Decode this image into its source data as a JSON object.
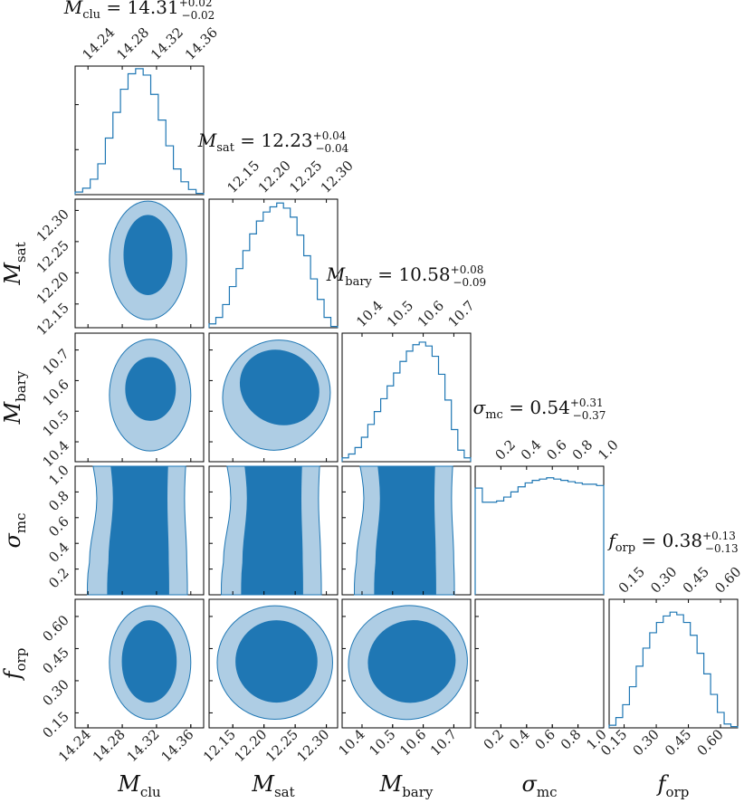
{
  "chart_data": {
    "type": "corner",
    "parameters": [
      {
        "key": "mclu",
        "symbol": "M",
        "sub": "clu",
        "median": "14.31",
        "plus": "+0.02",
        "minus": "−0.02",
        "range": [
          14.225,
          14.375
        ],
        "ticks": [
          14.24,
          14.28,
          14.32,
          14.36
        ],
        "tick_labels": [
          "14.24",
          "14.28",
          "14.32",
          "14.36"
        ],
        "hist": [
          0.02,
          0.05,
          0.12,
          0.24,
          0.44,
          0.64,
          0.82,
          0.94,
          0.98,
          0.93,
          0.78,
          0.58,
          0.38,
          0.2,
          0.1,
          0.04,
          0.01
        ]
      },
      {
        "key": "msat",
        "symbol": "M",
        "sub": "sat",
        "median": "12.23",
        "plus": "+0.04",
        "minus": "−0.04",
        "range": [
          12.112,
          12.318
        ],
        "ticks": [
          12.15,
          12.2,
          12.25,
          12.3
        ],
        "tick_labels": [
          "12.15",
          "12.20",
          "12.25",
          "12.30"
        ],
        "hist": [
          0.03,
          0.08,
          0.18,
          0.32,
          0.46,
          0.6,
          0.73,
          0.83,
          0.9,
          0.94,
          0.97,
          0.93,
          0.86,
          0.72,
          0.56,
          0.38,
          0.22,
          0.08,
          0.01
        ]
      },
      {
        "key": "mbary",
        "symbol": "M",
        "sub": "bary",
        "median": "10.58",
        "plus": "+0.08",
        "minus": "−0.09",
        "range": [
          10.335,
          10.755
        ],
        "ticks": [
          10.4,
          10.5,
          10.6,
          10.7
        ],
        "tick_labels": [
          "10.4",
          "10.5",
          "10.6",
          "10.7"
        ],
        "hist": [
          0.03,
          0.06,
          0.11,
          0.19,
          0.29,
          0.39,
          0.49,
          0.59,
          0.69,
          0.78,
          0.86,
          0.91,
          0.93,
          0.9,
          0.82,
          0.68,
          0.48,
          0.25,
          0.09,
          0.03
        ]
      },
      {
        "key": "sigmc",
        "symbol": "σ",
        "sub": "mc",
        "median": "0.54",
        "plus": "+0.31",
        "minus": "−0.37",
        "range": [
          0.0,
          1.0
        ],
        "ticks": [
          0.2,
          0.4,
          0.6,
          0.8,
          1.0
        ],
        "tick_labels": [
          "0.2",
          "0.4",
          "0.6",
          "0.8",
          "1.0"
        ],
        "hist": [
          0.83,
          0.72,
          0.72,
          0.73,
          0.76,
          0.8,
          0.84,
          0.87,
          0.89,
          0.9,
          0.91,
          0.9,
          0.89,
          0.88,
          0.87,
          0.86,
          0.86,
          0.85
        ]
      },
      {
        "key": "forp",
        "symbol": "f",
        "sub": "orp",
        "median": "0.38",
        "plus": "+0.13",
        "minus": "−0.13",
        "range": [
          0.08,
          0.68
        ],
        "ticks": [
          0.15,
          0.3,
          0.45,
          0.6
        ],
        "tick_labels": [
          "0.15",
          "0.30",
          "0.45",
          "0.60"
        ],
        "hist": [
          0.02,
          0.08,
          0.18,
          0.32,
          0.48,
          0.62,
          0.74,
          0.82,
          0.87,
          0.9,
          0.88,
          0.82,
          0.72,
          0.58,
          0.42,
          0.26,
          0.12,
          0.03,
          0.01
        ]
      }
    ],
    "contours": [
      {
        "row": 1,
        "col": 0,
        "outer": [
          [
            14.265,
            12.125
          ],
          [
            14.355,
            12.315
          ]
        ],
        "inner": [
          [
            14.282,
            12.165
          ],
          [
            14.338,
            12.292
          ]
        ]
      },
      {
        "row": 2,
        "col": 0,
        "outer": [
          [
            14.265,
            10.37
          ],
          [
            14.36,
            10.735
          ]
        ],
        "inner": [
          [
            14.284,
            10.47
          ],
          [
            14.342,
            10.675
          ]
        ]
      },
      {
        "row": 2,
        "col": 1,
        "outer": [
          [
            12.135,
            10.37
          ],
          [
            12.305,
            10.735
          ]
        ],
        "inner": [
          [
            12.16,
            10.46
          ],
          [
            12.29,
            10.695
          ]
        ]
      },
      {
        "row": 4,
        "col": 0,
        "outer": [
          [
            14.265,
            0.12
          ],
          [
            14.36,
            0.65
          ]
        ],
        "inner": [
          [
            14.28,
            0.2
          ],
          [
            14.343,
            0.58
          ]
        ]
      },
      {
        "row": 4,
        "col": 1,
        "outer": [
          [
            12.125,
            0.12
          ],
          [
            12.31,
            0.65
          ]
        ],
        "inner": [
          [
            12.155,
            0.2
          ],
          [
            12.285,
            0.58
          ]
        ]
      },
      {
        "row": 4,
        "col": 2,
        "outer": [
          [
            10.355,
            0.12
          ],
          [
            10.745,
            0.65
          ]
        ],
        "inner": [
          [
            10.42,
            0.2
          ],
          [
            10.705,
            0.58
          ]
        ]
      }
    ],
    "ylabels_row": [
      "M_sat",
      "M_bary",
      "σ_mc",
      "f_orp"
    ],
    "xlabels_col": [
      "M_clu",
      "M_sat",
      "M_bary",
      "σ_mc",
      "f_orp"
    ]
  },
  "titles": {
    "mclu": {
      "main": "M",
      "sub": "clu",
      "eq": " = 14.31",
      "up": "+0.02",
      "down": "−0.02"
    },
    "msat": {
      "main": "M",
      "sub": "sat",
      "eq": " = 12.23",
      "up": "+0.04",
      "down": "−0.04"
    },
    "mbary": {
      "main": "M",
      "sub": "bary",
      "eq": " = 10.58",
      "up": "+0.08",
      "down": "−0.09"
    },
    "sigmc": {
      "main": "σ",
      "sub": "mc",
      "eq": " = 0.54",
      "up": "+0.31",
      "down": "−0.37"
    },
    "forp": {
      "main": "f",
      "sub": "orp",
      "eq": " = 0.38",
      "up": "+0.13",
      "down": "−0.13"
    }
  },
  "colors": {
    "inner": "#1f77b4",
    "outer": "#aecde4",
    "line": "#1f77b4"
  }
}
